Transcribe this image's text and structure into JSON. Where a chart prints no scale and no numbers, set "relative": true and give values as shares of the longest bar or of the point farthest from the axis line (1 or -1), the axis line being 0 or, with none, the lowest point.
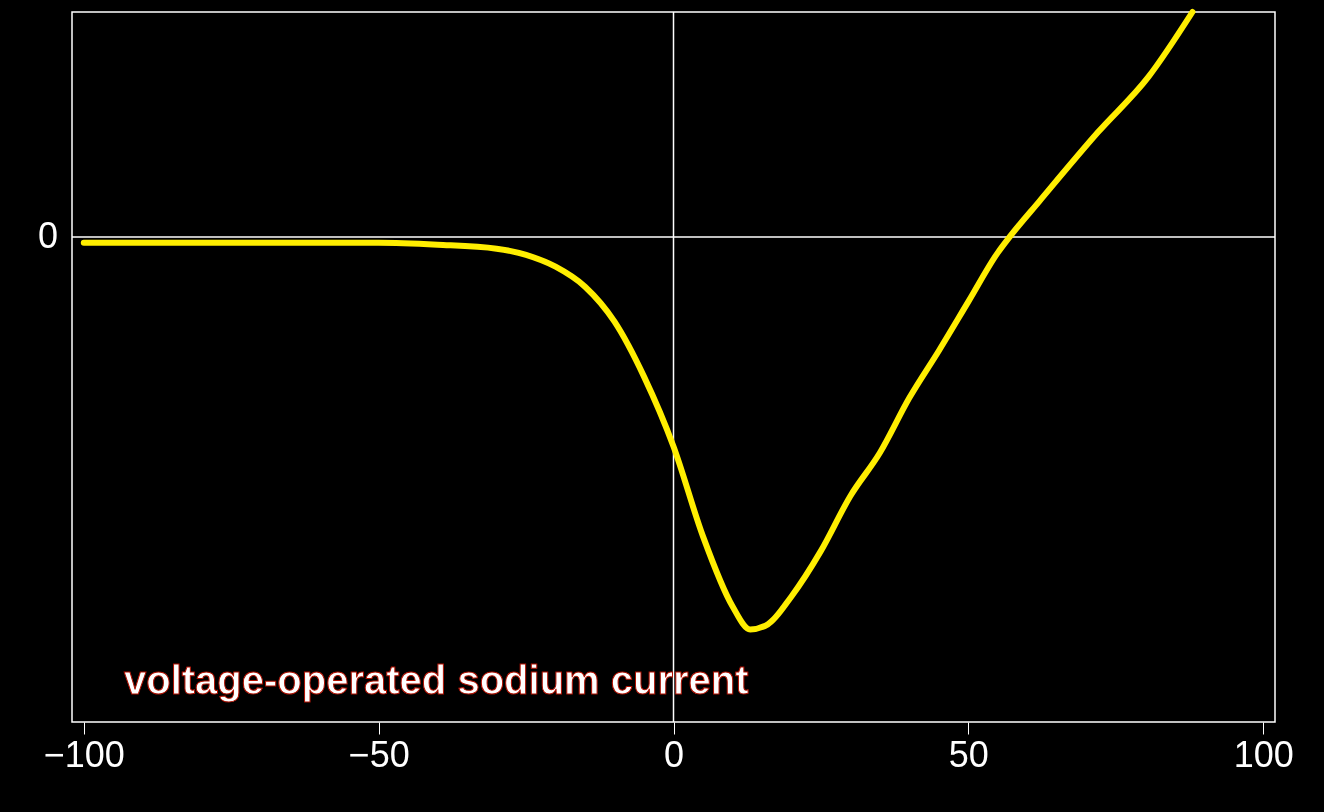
{
  "chart_data": {
    "type": "line",
    "relative": true,
    "x": [
      -100,
      -75,
      -50,
      -40,
      -30,
      -25,
      -20,
      -15,
      -10,
      -5,
      0,
      5,
      10,
      13,
      16,
      20,
      25,
      30,
      35,
      40,
      45,
      50,
      55,
      57,
      62,
      72,
      80.5,
      88
    ],
    "series": [
      {
        "color": "#ffee00",
        "values": [
          -0.015,
          -0.015,
          -0.015,
          -0.02,
          -0.03,
          -0.046,
          -0.076,
          -0.127,
          -0.216,
          -0.356,
          -0.534,
          -0.763,
          -0.941,
          -1,
          -0.987,
          -0.916,
          -0.8,
          -0.66,
          -0.55,
          -0.41,
          -0.29,
          -0.165,
          -0.04,
          0,
          0.09,
          0.267,
          0.407,
          0.573
        ]
      }
    ],
    "xlim": [
      -102,
      102
    ],
    "xticks": [
      -100,
      -50,
      0,
      50,
      100
    ],
    "ref_lines": [
      {
        "axis": "x",
        "value": 0,
        "color": "#ffffff"
      },
      {
        "axis": "y",
        "value": 0,
        "label": "0",
        "color": "#ffffff"
      }
    ],
    "annotations": [
      "voltage-operated sodium current"
    ],
    "grid": false,
    "marker": "none",
    "line_style": "solid"
  }
}
